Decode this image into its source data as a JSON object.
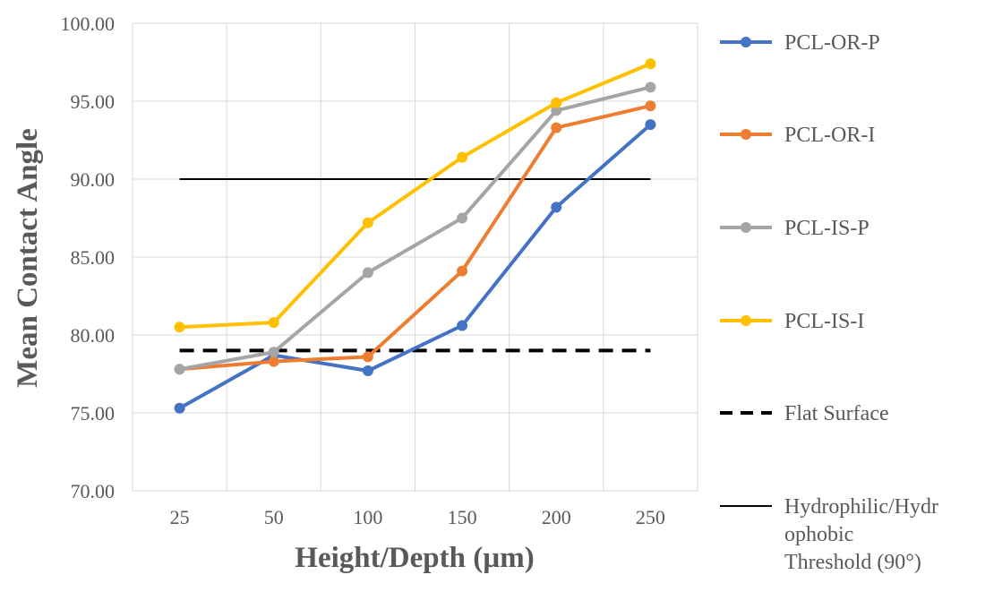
{
  "chart_data": {
    "type": "line",
    "xlabel": "Height/Depth (µm)",
    "ylabel": "Mean Contact Angle",
    "categories": [
      "25",
      "50",
      "100",
      "150",
      "200",
      "250"
    ],
    "ylim": [
      70,
      100
    ],
    "y_ticks": [
      "70.00",
      "75.00",
      "80.00",
      "85.00",
      "90.00",
      "95.00",
      "100.00"
    ],
    "grid": true,
    "legend_position": "right",
    "series": [
      {
        "name": "PCL-OR-P",
        "color": "#4472c4",
        "style": "line-marker",
        "values": [
          75.3,
          78.7,
          77.7,
          80.6,
          88.2,
          93.5
        ]
      },
      {
        "name": "PCL-OR-I",
        "color": "#ed7d31",
        "style": "line-marker",
        "values": [
          77.8,
          78.3,
          78.6,
          84.1,
          93.3,
          94.7
        ]
      },
      {
        "name": "PCL-IS-P",
        "color": "#a5a5a5",
        "style": "line-marker",
        "values": [
          77.8,
          78.9,
          84.0,
          87.5,
          94.4,
          95.9
        ]
      },
      {
        "name": "PCL-IS-I",
        "color": "#ffc000",
        "style": "line-marker",
        "values": [
          80.5,
          80.8,
          87.2,
          91.4,
          94.9,
          97.4
        ]
      },
      {
        "name": "Flat Surface",
        "color": "#000000",
        "style": "dashed",
        "values": [
          79.0,
          79.0,
          79.0,
          79.0,
          79.0,
          79.0
        ]
      },
      {
        "name": "Hydrophilic/Hydrophobic Threshold (90°)",
        "legend_lines": [
          "Hydrophilic/Hydr",
          "ophobic",
          "Threshold (90°)"
        ],
        "color": "#000000",
        "style": "thin",
        "values": [
          90.0,
          90.0,
          90.0,
          90.0,
          90.0,
          90.0
        ]
      }
    ]
  }
}
